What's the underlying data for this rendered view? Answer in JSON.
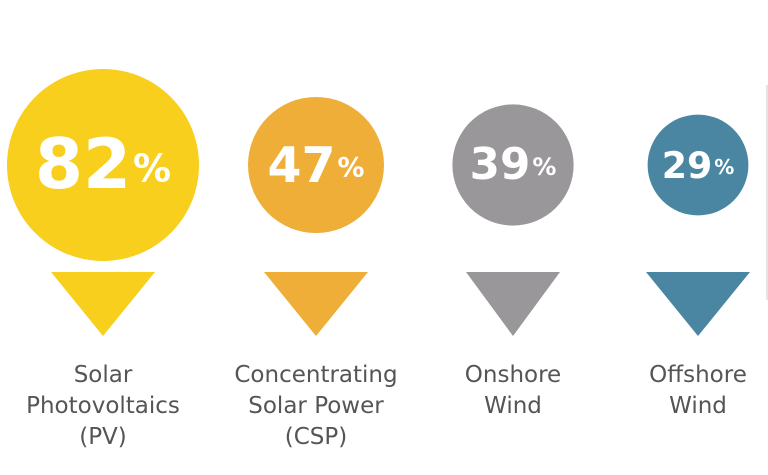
{
  "chart_data": {
    "type": "bubble",
    "value_suffix": "%",
    "categories": [
      [
        "Solar",
        "Photovoltaics",
        "(PV)"
      ],
      [
        "Concentrating",
        "Solar Power",
        "(CSP)"
      ],
      [
        "Onshore",
        "Wind"
      ],
      [
        "Offshore",
        "Wind"
      ]
    ],
    "values": [
      82,
      47,
      39,
      29
    ],
    "colors": [
      "#f7cf1c",
      "#eeae38",
      "#999799",
      "#4a86a1"
    ]
  }
}
